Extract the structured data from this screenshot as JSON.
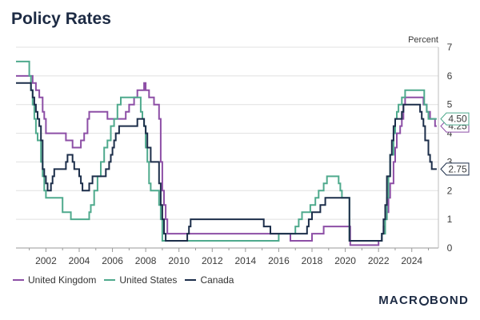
{
  "title": "Policy Rates",
  "brand": {
    "left": "MACR",
    "right": "BOND"
  },
  "colors": {
    "uk": "#8d4fa6",
    "us": "#4faa8d",
    "ca": "#1c2e4a",
    "grid": "#e1e1e1"
  },
  "chart_data": {
    "type": "line",
    "title": "Policy Rates",
    "unit_label": "Percent",
    "ylim": [
      0,
      7
    ],
    "yticks": [
      0,
      1,
      2,
      3,
      4,
      5,
      6,
      7
    ],
    "xlim": [
      2000.2,
      2025.6
    ],
    "xticks": [
      2002,
      2004,
      2006,
      2008,
      2010,
      2012,
      2014,
      2016,
      2018,
      2020,
      2022,
      2024
    ],
    "grid": true,
    "legend_position": "bottom-left",
    "series": [
      {
        "key": "uk",
        "name": "United Kingdom",
        "end_label": "4.25",
        "points": [
          [
            2000.2,
            6.0
          ],
          [
            2001.1,
            6.0
          ],
          [
            2001.2,
            5.75
          ],
          [
            2001.4,
            5.5
          ],
          [
            2001.6,
            5.25
          ],
          [
            2001.8,
            4.75
          ],
          [
            2001.9,
            4.5
          ],
          [
            2002.0,
            4.0
          ],
          [
            2003.1,
            4.0
          ],
          [
            2003.2,
            3.75
          ],
          [
            2003.5,
            3.75
          ],
          [
            2003.6,
            3.5
          ],
          [
            2003.9,
            3.5
          ],
          [
            2004.1,
            3.75
          ],
          [
            2004.3,
            4.0
          ],
          [
            2004.5,
            4.5
          ],
          [
            2004.6,
            4.75
          ],
          [
            2005.6,
            4.75
          ],
          [
            2005.7,
            4.5
          ],
          [
            2006.6,
            4.5
          ],
          [
            2006.8,
            4.75
          ],
          [
            2007.0,
            5.0
          ],
          [
            2007.3,
            5.25
          ],
          [
            2007.5,
            5.5
          ],
          [
            2007.9,
            5.75
          ],
          [
            2008.0,
            5.5
          ],
          [
            2008.2,
            5.25
          ],
          [
            2008.5,
            5.0
          ],
          [
            2008.8,
            4.5
          ],
          [
            2008.9,
            3.0
          ],
          [
            2009.0,
            2.0
          ],
          [
            2009.1,
            1.5
          ],
          [
            2009.2,
            1.0
          ],
          [
            2009.3,
            0.5
          ],
          [
            2016.6,
            0.5
          ],
          [
            2016.7,
            0.25
          ],
          [
            2017.9,
            0.25
          ],
          [
            2018.0,
            0.5
          ],
          [
            2018.6,
            0.5
          ],
          [
            2018.7,
            0.75
          ],
          [
            2020.2,
            0.75
          ],
          [
            2020.3,
            0.1
          ],
          [
            2021.9,
            0.1
          ],
          [
            2022.0,
            0.25
          ],
          [
            2022.2,
            0.5
          ],
          [
            2022.3,
            0.75
          ],
          [
            2022.4,
            1.0
          ],
          [
            2022.5,
            1.25
          ],
          [
            2022.6,
            1.75
          ],
          [
            2022.7,
            2.25
          ],
          [
            2022.9,
            3.0
          ],
          [
            2023.0,
            3.5
          ],
          [
            2023.1,
            4.0
          ],
          [
            2023.3,
            4.25
          ],
          [
            2023.4,
            4.5
          ],
          [
            2023.5,
            5.0
          ],
          [
            2023.6,
            5.25
          ],
          [
            2024.6,
            5.25
          ],
          [
            2024.7,
            5.0
          ],
          [
            2024.9,
            4.75
          ],
          [
            2025.1,
            4.5
          ],
          [
            2025.4,
            4.25
          ],
          [
            2025.5,
            4.25
          ]
        ]
      },
      {
        "key": "us",
        "name": "United States",
        "end_label": "4.50",
        "points": [
          [
            2000.2,
            6.5
          ],
          [
            2000.9,
            6.5
          ],
          [
            2001.0,
            6.0
          ],
          [
            2001.1,
            5.5
          ],
          [
            2001.2,
            5.0
          ],
          [
            2001.3,
            4.5
          ],
          [
            2001.4,
            4.0
          ],
          [
            2001.5,
            3.75
          ],
          [
            2001.7,
            3.0
          ],
          [
            2001.8,
            2.5
          ],
          [
            2001.9,
            2.0
          ],
          [
            2002.0,
            1.75
          ],
          [
            2002.9,
            1.75
          ],
          [
            2003.0,
            1.25
          ],
          [
            2003.5,
            1.0
          ],
          [
            2004.5,
            1.0
          ],
          [
            2004.6,
            1.25
          ],
          [
            2004.7,
            1.5
          ],
          [
            2004.9,
            2.0
          ],
          [
            2005.1,
            2.5
          ],
          [
            2005.3,
            3.0
          ],
          [
            2005.5,
            3.5
          ],
          [
            2005.7,
            3.75
          ],
          [
            2005.9,
            4.25
          ],
          [
            2006.1,
            4.5
          ],
          [
            2006.3,
            5.0
          ],
          [
            2006.5,
            5.25
          ],
          [
            2007.6,
            5.25
          ],
          [
            2007.7,
            4.75
          ],
          [
            2007.8,
            4.5
          ],
          [
            2007.9,
            4.25
          ],
          [
            2008.0,
            3.5
          ],
          [
            2008.1,
            3.0
          ],
          [
            2008.2,
            2.25
          ],
          [
            2008.3,
            2.0
          ],
          [
            2008.75,
            2.0
          ],
          [
            2008.8,
            1.5
          ],
          [
            2008.9,
            1.0
          ],
          [
            2009.0,
            0.25
          ],
          [
            2015.9,
            0.25
          ],
          [
            2016.0,
            0.5
          ],
          [
            2016.9,
            0.5
          ],
          [
            2017.0,
            0.75
          ],
          [
            2017.2,
            1.0
          ],
          [
            2017.4,
            1.25
          ],
          [
            2017.9,
            1.5
          ],
          [
            2018.2,
            1.75
          ],
          [
            2018.4,
            2.0
          ],
          [
            2018.7,
            2.25
          ],
          [
            2018.9,
            2.5
          ],
          [
            2019.5,
            2.5
          ],
          [
            2019.6,
            2.25
          ],
          [
            2019.7,
            2.0
          ],
          [
            2019.8,
            1.75
          ],
          [
            2020.2,
            1.75
          ],
          [
            2020.25,
            0.25
          ],
          [
            2022.1,
            0.25
          ],
          [
            2022.2,
            0.5
          ],
          [
            2022.4,
            1.0
          ],
          [
            2022.5,
            1.75
          ],
          [
            2022.6,
            2.5
          ],
          [
            2022.7,
            3.25
          ],
          [
            2022.9,
            4.0
          ],
          [
            2023.0,
            4.5
          ],
          [
            2023.1,
            4.75
          ],
          [
            2023.2,
            5.0
          ],
          [
            2023.4,
            5.25
          ],
          [
            2023.6,
            5.5
          ],
          [
            2024.7,
            5.5
          ],
          [
            2024.75,
            5.0
          ],
          [
            2024.9,
            4.75
          ],
          [
            2025.0,
            4.5
          ],
          [
            2025.5,
            4.5
          ]
        ]
      },
      {
        "key": "ca",
        "name": "Canada",
        "end_label": "2.75",
        "points": [
          [
            2000.2,
            5.75
          ],
          [
            2001.0,
            5.75
          ],
          [
            2001.1,
            5.5
          ],
          [
            2001.2,
            5.25
          ],
          [
            2001.3,
            5.0
          ],
          [
            2001.4,
            4.75
          ],
          [
            2001.5,
            4.5
          ],
          [
            2001.6,
            4.25
          ],
          [
            2001.7,
            3.75
          ],
          [
            2001.8,
            2.75
          ],
          [
            2001.9,
            2.5
          ],
          [
            2002.0,
            2.25
          ],
          [
            2002.1,
            2.0
          ],
          [
            2002.3,
            2.25
          ],
          [
            2002.4,
            2.5
          ],
          [
            2002.5,
            2.75
          ],
          [
            2003.2,
            3.0
          ],
          [
            2003.3,
            3.25
          ],
          [
            2003.6,
            3.0
          ],
          [
            2003.7,
            2.75
          ],
          [
            2004.0,
            2.5
          ],
          [
            2004.1,
            2.25
          ],
          [
            2004.2,
            2.0
          ],
          [
            2004.6,
            2.25
          ],
          [
            2004.8,
            2.5
          ],
          [
            2005.6,
            2.75
          ],
          [
            2005.8,
            3.0
          ],
          [
            2005.9,
            3.25
          ],
          [
            2006.0,
            3.5
          ],
          [
            2006.1,
            3.75
          ],
          [
            2006.2,
            4.0
          ],
          [
            2006.4,
            4.25
          ],
          [
            2007.5,
            4.5
          ],
          [
            2007.9,
            4.25
          ],
          [
            2008.0,
            4.0
          ],
          [
            2008.1,
            3.5
          ],
          [
            2008.3,
            3.0
          ],
          [
            2008.8,
            2.25
          ],
          [
            2008.9,
            1.5
          ],
          [
            2009.0,
            1.0
          ],
          [
            2009.1,
            0.5
          ],
          [
            2009.2,
            0.25
          ],
          [
            2010.4,
            0.25
          ],
          [
            2010.5,
            0.5
          ],
          [
            2010.6,
            0.75
          ],
          [
            2010.7,
            1.0
          ],
          [
            2015.0,
            1.0
          ],
          [
            2015.1,
            0.75
          ],
          [
            2015.5,
            0.5
          ],
          [
            2017.5,
            0.5
          ],
          [
            2017.7,
            0.75
          ],
          [
            2017.8,
            1.0
          ],
          [
            2018.0,
            1.25
          ],
          [
            2018.5,
            1.5
          ],
          [
            2018.8,
            1.75
          ],
          [
            2020.2,
            1.75
          ],
          [
            2020.25,
            0.25
          ],
          [
            2022.1,
            0.25
          ],
          [
            2022.2,
            0.5
          ],
          [
            2022.3,
            1.0
          ],
          [
            2022.4,
            1.5
          ],
          [
            2022.5,
            2.5
          ],
          [
            2022.7,
            3.25
          ],
          [
            2022.8,
            3.75
          ],
          [
            2022.9,
            4.25
          ],
          [
            2023.0,
            4.5
          ],
          [
            2023.4,
            4.75
          ],
          [
            2023.5,
            5.0
          ],
          [
            2024.4,
            5.0
          ],
          [
            2024.5,
            4.75
          ],
          [
            2024.6,
            4.5
          ],
          [
            2024.7,
            4.25
          ],
          [
            2024.8,
            3.75
          ],
          [
            2025.0,
            3.25
          ],
          [
            2025.1,
            3.0
          ],
          [
            2025.2,
            2.75
          ],
          [
            2025.5,
            2.75
          ]
        ]
      }
    ]
  }
}
